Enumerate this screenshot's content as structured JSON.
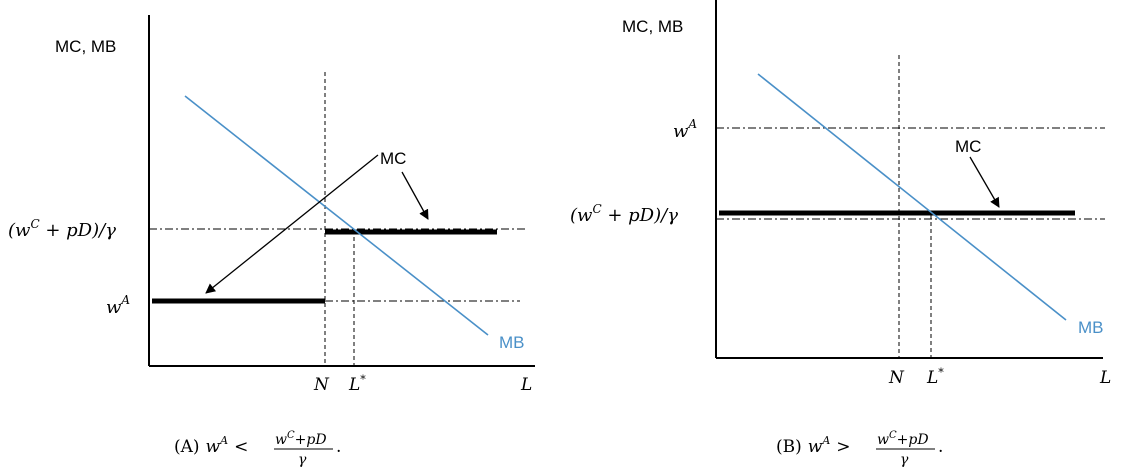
{
  "panels": [
    {
      "id": "A",
      "y_axis_label": "MC, MB",
      "x_axis_label": "L",
      "tick_N": "N",
      "tick_L": "L",
      "tick_L_sup": "*",
      "level_high": {
        "open": "(w",
        "sup": "C",
        "rest": " + pD)/γ"
      },
      "level_low": {
        "base": "w",
        "sup": "A"
      },
      "mc_label": "MC",
      "mb_label": "MB",
      "caption": {
        "tag": "(A)",
        "lhs": "w",
        "lhs_sup": "A",
        "rel": "<",
        "numer": "w",
        "numer_sup": "C",
        "numer_rest": "+pD",
        "denom": "γ",
        "end": "."
      }
    },
    {
      "id": "B",
      "y_axis_label": "MC, MB",
      "x_axis_label": "L",
      "tick_N": "N",
      "tick_L": "L",
      "tick_L_sup": "*",
      "level_high": {
        "base": "w",
        "sup": "A"
      },
      "level_low": {
        "open": "(w",
        "sup": "C",
        "rest": " + pD)/γ"
      },
      "mc_label": "MC",
      "mb_label": "MB",
      "caption": {
        "tag": "(B)",
        "lhs": "w",
        "lhs_sup": "A",
        "rel": ">",
        "numer": "w",
        "numer_sup": "C",
        "numer_rest": "+pD",
        "denom": "γ",
        "end": "."
      }
    }
  ],
  "colors": {
    "mb_line": "#4a90c8",
    "ink": "#000000"
  }
}
